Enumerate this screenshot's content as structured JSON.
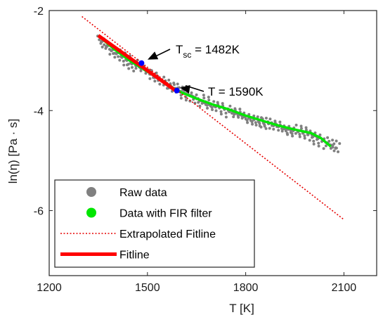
{
  "chart_data": {
    "type": "scatter",
    "xlabel": "T [K]",
    "ylabel": "ln(η) [Pa · s]",
    "xlim": [
      1200,
      2200
    ],
    "ylim": [
      -7.3,
      -2
    ],
    "xticks": [
      "1200",
      "1500",
      "1800",
      "2100"
    ],
    "xtick_values": [
      1200,
      1500,
      1800,
      2100
    ],
    "yticks": [
      "-2",
      "-4",
      "-6"
    ],
    "ytick_values": [
      -2,
      -4,
      -6
    ],
    "grid": false,
    "legend_position": "bottom-left",
    "series": [
      {
        "name": "Raw data",
        "kind": "scatter",
        "color": "#808080",
        "x": [
          1360,
          1375,
          1390,
          1405,
          1420,
          1435,
          1450,
          1465,
          1480,
          1495,
          1510,
          1525,
          1540,
          1555,
          1570,
          1585,
          1600,
          1615,
          1630,
          1645,
          1660,
          1675,
          1690,
          1705,
          1720,
          1735,
          1750,
          1765,
          1780,
          1795,
          1810,
          1825,
          1840,
          1855,
          1870,
          1885,
          1900,
          1915,
          1930,
          1945,
          1960,
          1975,
          1990,
          2005,
          2020,
          2035,
          2050,
          2065,
          2075
        ],
        "y": [
          -2.62,
          -2.72,
          -2.8,
          -2.86,
          -2.92,
          -2.98,
          -3.05,
          -3.1,
          -3.15,
          -3.2,
          -3.27,
          -3.32,
          -3.38,
          -3.44,
          -3.5,
          -3.56,
          -3.62,
          -3.66,
          -3.7,
          -3.74,
          -3.8,
          -3.84,
          -3.88,
          -3.91,
          -3.93,
          -3.96,
          -4.02,
          -4.07,
          -4.08,
          -4.12,
          -4.15,
          -4.18,
          -4.22,
          -4.25,
          -4.26,
          -4.3,
          -4.32,
          -4.36,
          -4.37,
          -4.4,
          -4.42,
          -4.45,
          -4.48,
          -4.52,
          -4.56,
          -4.6,
          -4.65,
          -4.7,
          -4.75
        ]
      },
      {
        "name": "Data with FIR filter",
        "kind": "line",
        "color": "#00e600",
        "x": [
          1350,
          1400,
          1450,
          1500,
          1550,
          1590,
          1620,
          1650,
          1700,
          1750,
          1800,
          1850,
          1900,
          1950,
          2000,
          2030,
          2060
        ],
        "y": [
          -2.5,
          -2.78,
          -3.02,
          -3.22,
          -3.42,
          -3.6,
          -3.68,
          -3.76,
          -3.88,
          -3.98,
          -4.1,
          -4.2,
          -4.3,
          -4.38,
          -4.45,
          -4.55,
          -4.72
        ]
      },
      {
        "name": "Extrapolated Fitline",
        "kind": "line",
        "style": "dotted",
        "color": "#e60000",
        "x": [
          1300,
          2100
        ],
        "y": [
          -2.12,
          -6.18
        ]
      },
      {
        "name": "Fitline",
        "kind": "line",
        "color": "#ff0000",
        "x": [
          1350,
          1590
        ],
        "y": [
          -2.5,
          -3.62
        ]
      }
    ],
    "markers": [
      {
        "x": 1482,
        "y": -3.05,
        "color": "#0000ff"
      },
      {
        "x": 1590,
        "y": -3.6,
        "color": "#0000ff"
      }
    ],
    "annotations": [
      {
        "text_main": "T",
        "text_sub": "sc",
        "text_rest": " = 1482K",
        "x": 1482,
        "y": -3.05
      },
      {
        "text_main": "T",
        "text_sub": "",
        "text_rest": " = 1590K",
        "x": 1590,
        "y": -3.6
      }
    ]
  }
}
